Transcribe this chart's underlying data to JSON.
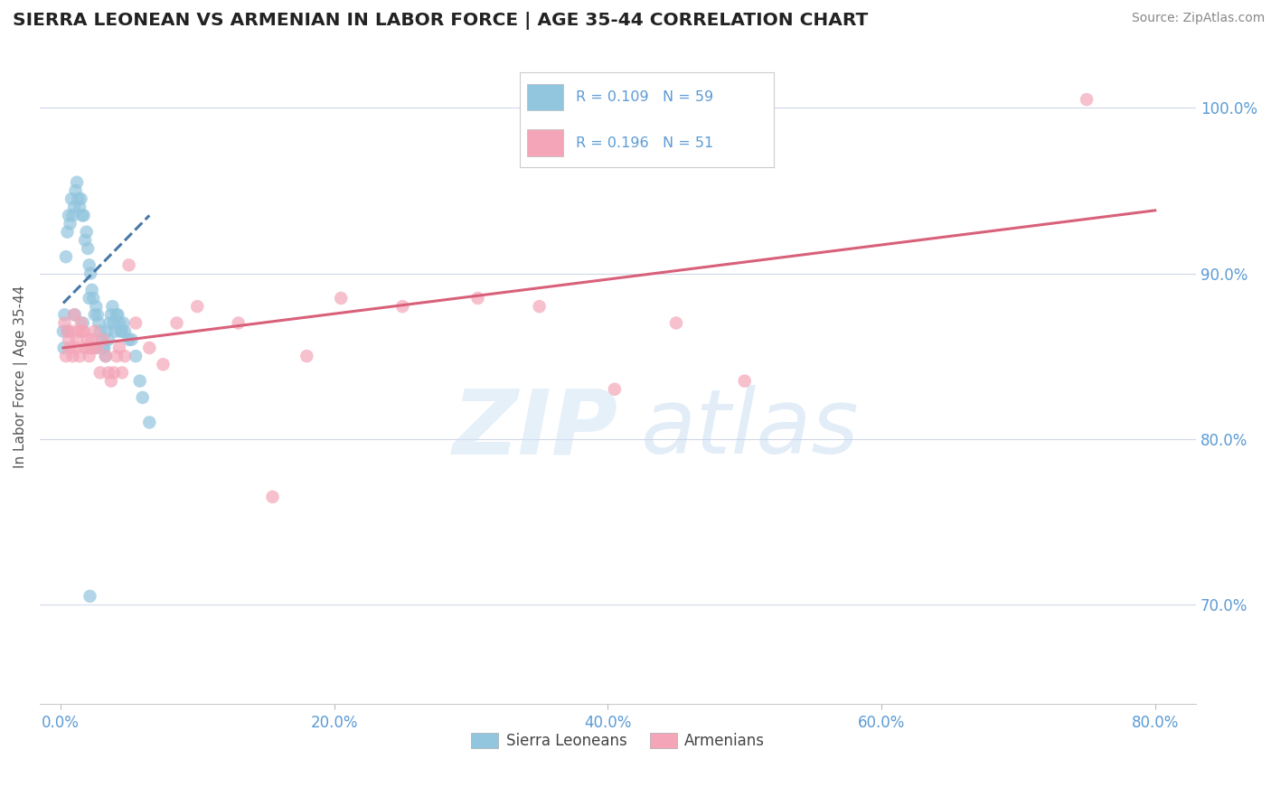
{
  "title": "SIERRA LEONEAN VS ARMENIAN IN LABOR FORCE | AGE 35-44 CORRELATION CHART",
  "source": "Source: ZipAtlas.com",
  "ylabel": "In Labor Force | Age 35-44",
  "x_tick_labels": [
    "0.0%",
    "20.0%",
    "40.0%",
    "60.0%",
    "80.0%"
  ],
  "x_tick_values": [
    0.0,
    20.0,
    40.0,
    60.0,
    80.0
  ],
  "y_tick_labels": [
    "70.0%",
    "80.0%",
    "90.0%",
    "100.0%"
  ],
  "y_tick_values": [
    70.0,
    80.0,
    90.0,
    100.0
  ],
  "xlim": [
    -1.5,
    83
  ],
  "ylim": [
    64.0,
    103.5
  ],
  "blue_color": "#92c5de",
  "pink_color": "#f4a6b8",
  "blue_line_color": "#4878a8",
  "pink_line_color": "#d9607a",
  "blue_scatter_x": [
    0.2,
    0.3,
    0.4,
    0.5,
    0.6,
    0.7,
    0.8,
    0.9,
    1.0,
    1.1,
    1.2,
    1.3,
    1.4,
    1.5,
    1.6,
    1.7,
    1.8,
    1.9,
    2.0,
    2.1,
    2.1,
    2.2,
    2.3,
    2.4,
    2.5,
    2.6,
    2.7,
    2.8,
    2.9,
    3.0,
    3.1,
    3.2,
    3.3,
    3.4,
    3.5,
    3.6,
    3.7,
    3.8,
    3.9,
    4.0,
    4.1,
    4.2,
    4.3,
    4.4,
    4.5,
    4.6,
    4.7,
    5.0,
    5.2,
    5.5,
    5.8,
    6.0,
    6.5,
    2.15,
    0.25,
    0.55,
    1.05,
    1.65,
    2.55
  ],
  "blue_scatter_y": [
    86.5,
    87.5,
    91.0,
    92.5,
    93.5,
    93.0,
    94.5,
    93.5,
    94.0,
    95.0,
    95.5,
    94.5,
    94.0,
    94.5,
    93.5,
    93.5,
    92.0,
    92.5,
    91.5,
    90.5,
    88.5,
    90.0,
    89.0,
    88.5,
    87.5,
    88.0,
    87.5,
    87.0,
    86.5,
    86.0,
    85.5,
    85.5,
    85.0,
    86.5,
    86.0,
    87.0,
    87.5,
    88.0,
    87.0,
    86.5,
    87.5,
    87.5,
    87.0,
    86.5,
    86.5,
    87.0,
    86.5,
    86.0,
    86.0,
    85.0,
    83.5,
    82.5,
    81.0,
    70.5,
    85.5,
    86.5,
    87.5,
    87.0,
    85.5
  ],
  "pink_scatter_x": [
    0.3,
    0.5,
    0.7,
    0.9,
    1.1,
    1.3,
    1.5,
    1.7,
    1.9,
    2.1,
    2.3,
    2.5,
    2.7,
    2.9,
    3.1,
    3.3,
    3.5,
    3.7,
    3.9,
    4.1,
    4.3,
    4.5,
    4.7,
    5.0,
    5.5,
    6.5,
    7.5,
    8.5,
    10.0,
    13.0,
    15.5,
    18.0,
    20.5,
    25.0,
    30.5,
    35.0,
    40.5,
    45.0,
    50.0,
    0.4,
    0.6,
    0.8,
    1.0,
    1.2,
    1.4,
    1.6,
    1.8,
    2.0,
    2.2,
    2.4,
    75.0
  ],
  "pink_scatter_y": [
    87.0,
    86.5,
    85.5,
    85.0,
    85.5,
    86.5,
    87.0,
    86.5,
    85.5,
    85.0,
    86.0,
    86.5,
    85.5,
    84.0,
    86.0,
    85.0,
    84.0,
    83.5,
    84.0,
    85.0,
    85.5,
    84.0,
    85.0,
    90.5,
    87.0,
    85.5,
    84.5,
    87.0,
    88.0,
    87.0,
    76.5,
    85.0,
    88.5,
    88.0,
    88.5,
    88.0,
    83.0,
    87.0,
    83.5,
    85.0,
    86.0,
    86.5,
    87.5,
    86.0,
    85.0,
    86.5,
    85.5,
    86.0,
    85.5,
    85.5,
    100.5
  ],
  "blue_trend_x": [
    0.2,
    6.5
  ],
  "blue_trend_y": [
    88.2,
    93.5
  ],
  "pink_trend_x": [
    0.2,
    80.0
  ],
  "pink_trend_y": [
    85.5,
    93.8
  ],
  "legend_R1": "R = 0.109",
  "legend_N1": "N = 59",
  "legend_R2": "R = 0.196",
  "legend_N2": "N = 51",
  "bottom_legend_labels": [
    "Sierra Leoneans",
    "Armenians"
  ]
}
